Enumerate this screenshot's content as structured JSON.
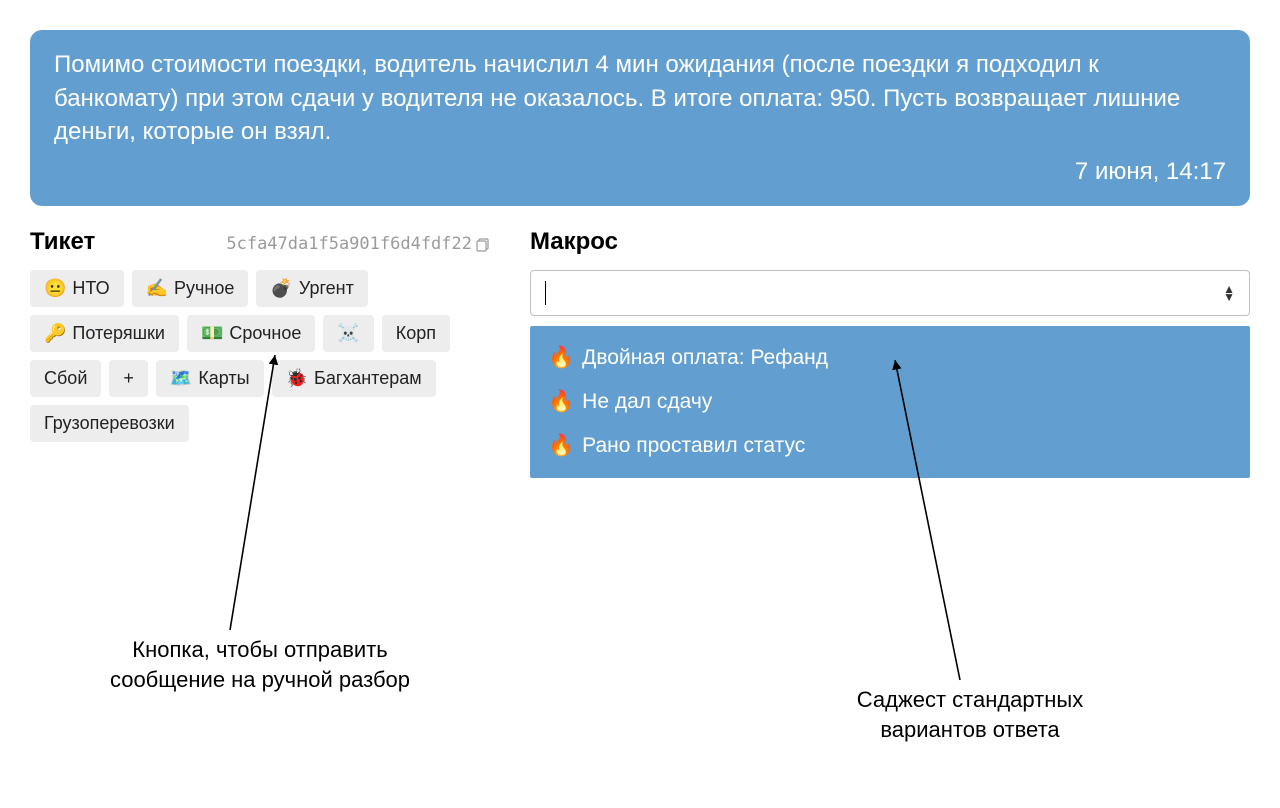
{
  "message": {
    "text": "Помимо стоимости поездки, водитель начислил 4 мин ожидания (после поездки я подходил к банкомату) при этом сдачи у водителя не оказалось. В итоге оплата: 950. Пусть возвращает лишние деньги, которые он взял.",
    "timestamp": "7 июня, 14:17"
  },
  "ticket": {
    "title": "Тикет",
    "id": "5cfa47da1f5a901f6d4fdf22",
    "tags": [
      {
        "emoji": "😐",
        "label": "НТО"
      },
      {
        "emoji": "✍️",
        "label": "Ручное"
      },
      {
        "emoji": "💣",
        "label": "Ургент"
      },
      {
        "emoji": "🔑",
        "label": "Потеряшки"
      },
      {
        "emoji": "💵",
        "label": "Срочное"
      },
      {
        "emoji": "☠️",
        "label": ""
      },
      {
        "emoji": "",
        "label": "Корп"
      },
      {
        "emoji": "",
        "label": "Сбой"
      },
      {
        "emoji": "",
        "label": "+"
      },
      {
        "emoji": "🗺️",
        "label": "Карты"
      },
      {
        "emoji": "🐞",
        "label": "Багхантерам"
      },
      {
        "emoji": "",
        "label": "Грузоперевозки"
      }
    ]
  },
  "macro": {
    "title": "Макрос",
    "suggestions": [
      {
        "emoji": "🔥",
        "label": "Двойная оплата: Рефанд"
      },
      {
        "emoji": "🔥",
        "label": "Не дал сдачу"
      },
      {
        "emoji": "🔥",
        "label": "Рано проставил статус"
      }
    ]
  },
  "annotations": {
    "left_line1": "Кнопка, чтобы отправить",
    "left_line2": "сообщение на ручной разбор",
    "right_line1": "Саджест стандартных",
    "right_line2": "вариантов ответа"
  },
  "colors": {
    "bubble_bg": "#629fd0",
    "bubble_text": "#ffffff",
    "tag_bg": "#ededed",
    "suggest_bg": "#629fd0",
    "page_bg": "#ffffff",
    "id_color": "#9a9a9a"
  }
}
